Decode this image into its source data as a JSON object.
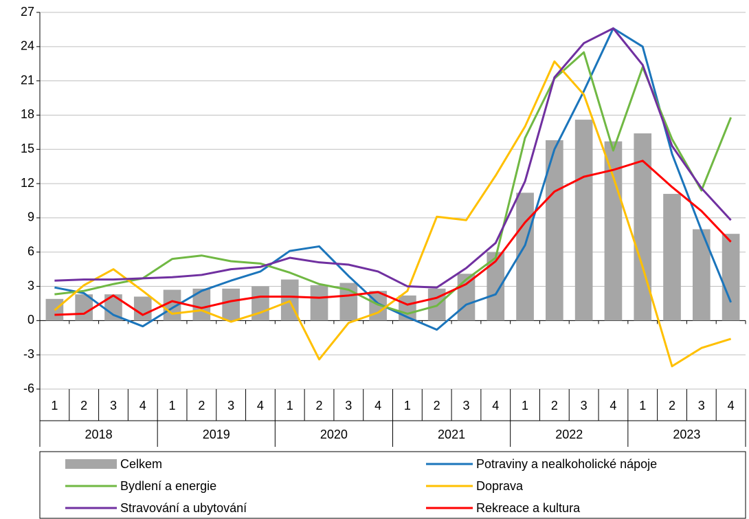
{
  "chart_data": {
    "type": "combo",
    "categories": [
      "1",
      "2",
      "3",
      "4",
      "1",
      "2",
      "3",
      "4",
      "1",
      "2",
      "3",
      "4",
      "1",
      "2",
      "3",
      "4",
      "1",
      "2",
      "3",
      "4",
      "1",
      "2",
      "3",
      "4"
    ],
    "years": [
      "2018",
      "2019",
      "2020",
      "2021",
      "2022",
      "2023"
    ],
    "ylim": [
      -6,
      27
    ],
    "yticks": [
      -6,
      -3,
      0,
      3,
      6,
      9,
      12,
      15,
      18,
      21,
      24,
      27
    ],
    "grid": true,
    "legend": "bottom",
    "series": [
      {
        "name": "Celkem",
        "type": "bar",
        "color": "#a6a6a6",
        "values": [
          1.9,
          2.3,
          2.3,
          2.1,
          2.7,
          2.8,
          2.8,
          3.0,
          3.6,
          3.1,
          3.3,
          2.6,
          2.2,
          2.8,
          4.1,
          6.0,
          11.2,
          15.8,
          17.6,
          15.7,
          16.4,
          11.1,
          8.0,
          7.6
        ]
      },
      {
        "name": "Potraviny a nealkoholické nápoje",
        "type": "line",
        "color": "#1b75bb",
        "values": [
          2.9,
          2.4,
          0.5,
          -0.5,
          1.1,
          2.6,
          3.5,
          4.3,
          6.1,
          6.5,
          3.9,
          1.5,
          0.3,
          -0.8,
          1.4,
          2.3,
          6.6,
          15.0,
          20.1,
          25.6,
          24.0,
          14.6,
          7.9,
          1.6
        ]
      },
      {
        "name": "Bydlení a energie",
        "type": "line",
        "color": "#70b843",
        "values": [
          2.3,
          2.6,
          3.2,
          3.7,
          5.4,
          5.7,
          5.2,
          5.0,
          4.2,
          3.2,
          2.7,
          1.4,
          0.6,
          1.3,
          3.6,
          5.5,
          16.0,
          21.2,
          23.5,
          14.9,
          22.2,
          15.9,
          11.4,
          17.8
        ]
      },
      {
        "name": "Doprava",
        "type": "line",
        "color": "#ffc000",
        "values": [
          0.9,
          3.1,
          4.5,
          2.6,
          0.6,
          0.9,
          -0.1,
          0.7,
          1.7,
          -3.4,
          -0.2,
          0.7,
          2.6,
          9.1,
          8.8,
          12.7,
          17.0,
          22.7,
          19.8,
          12.6,
          4.7,
          -4.0,
          -2.4,
          -1.6
        ]
      },
      {
        "name": "Stravování a ubytování",
        "type": "line",
        "color": "#7030a0",
        "values": [
          3.5,
          3.6,
          3.6,
          3.7,
          3.8,
          4.0,
          4.5,
          4.7,
          5.5,
          5.1,
          4.9,
          4.3,
          3.0,
          2.9,
          4.6,
          6.8,
          12.2,
          21.3,
          24.3,
          25.6,
          22.4,
          15.3,
          11.6,
          8.8
        ]
      },
      {
        "name": "Rekreace a kultura",
        "type": "line",
        "color": "#ff0000",
        "values": [
          0.5,
          0.6,
          2.2,
          0.5,
          1.7,
          1.1,
          1.7,
          2.1,
          2.1,
          2.0,
          2.2,
          2.5,
          1.4,
          2.0,
          3.2,
          5.2,
          8.6,
          11.3,
          12.6,
          13.2,
          14.0,
          11.7,
          9.6,
          6.9
        ]
      }
    ]
  }
}
